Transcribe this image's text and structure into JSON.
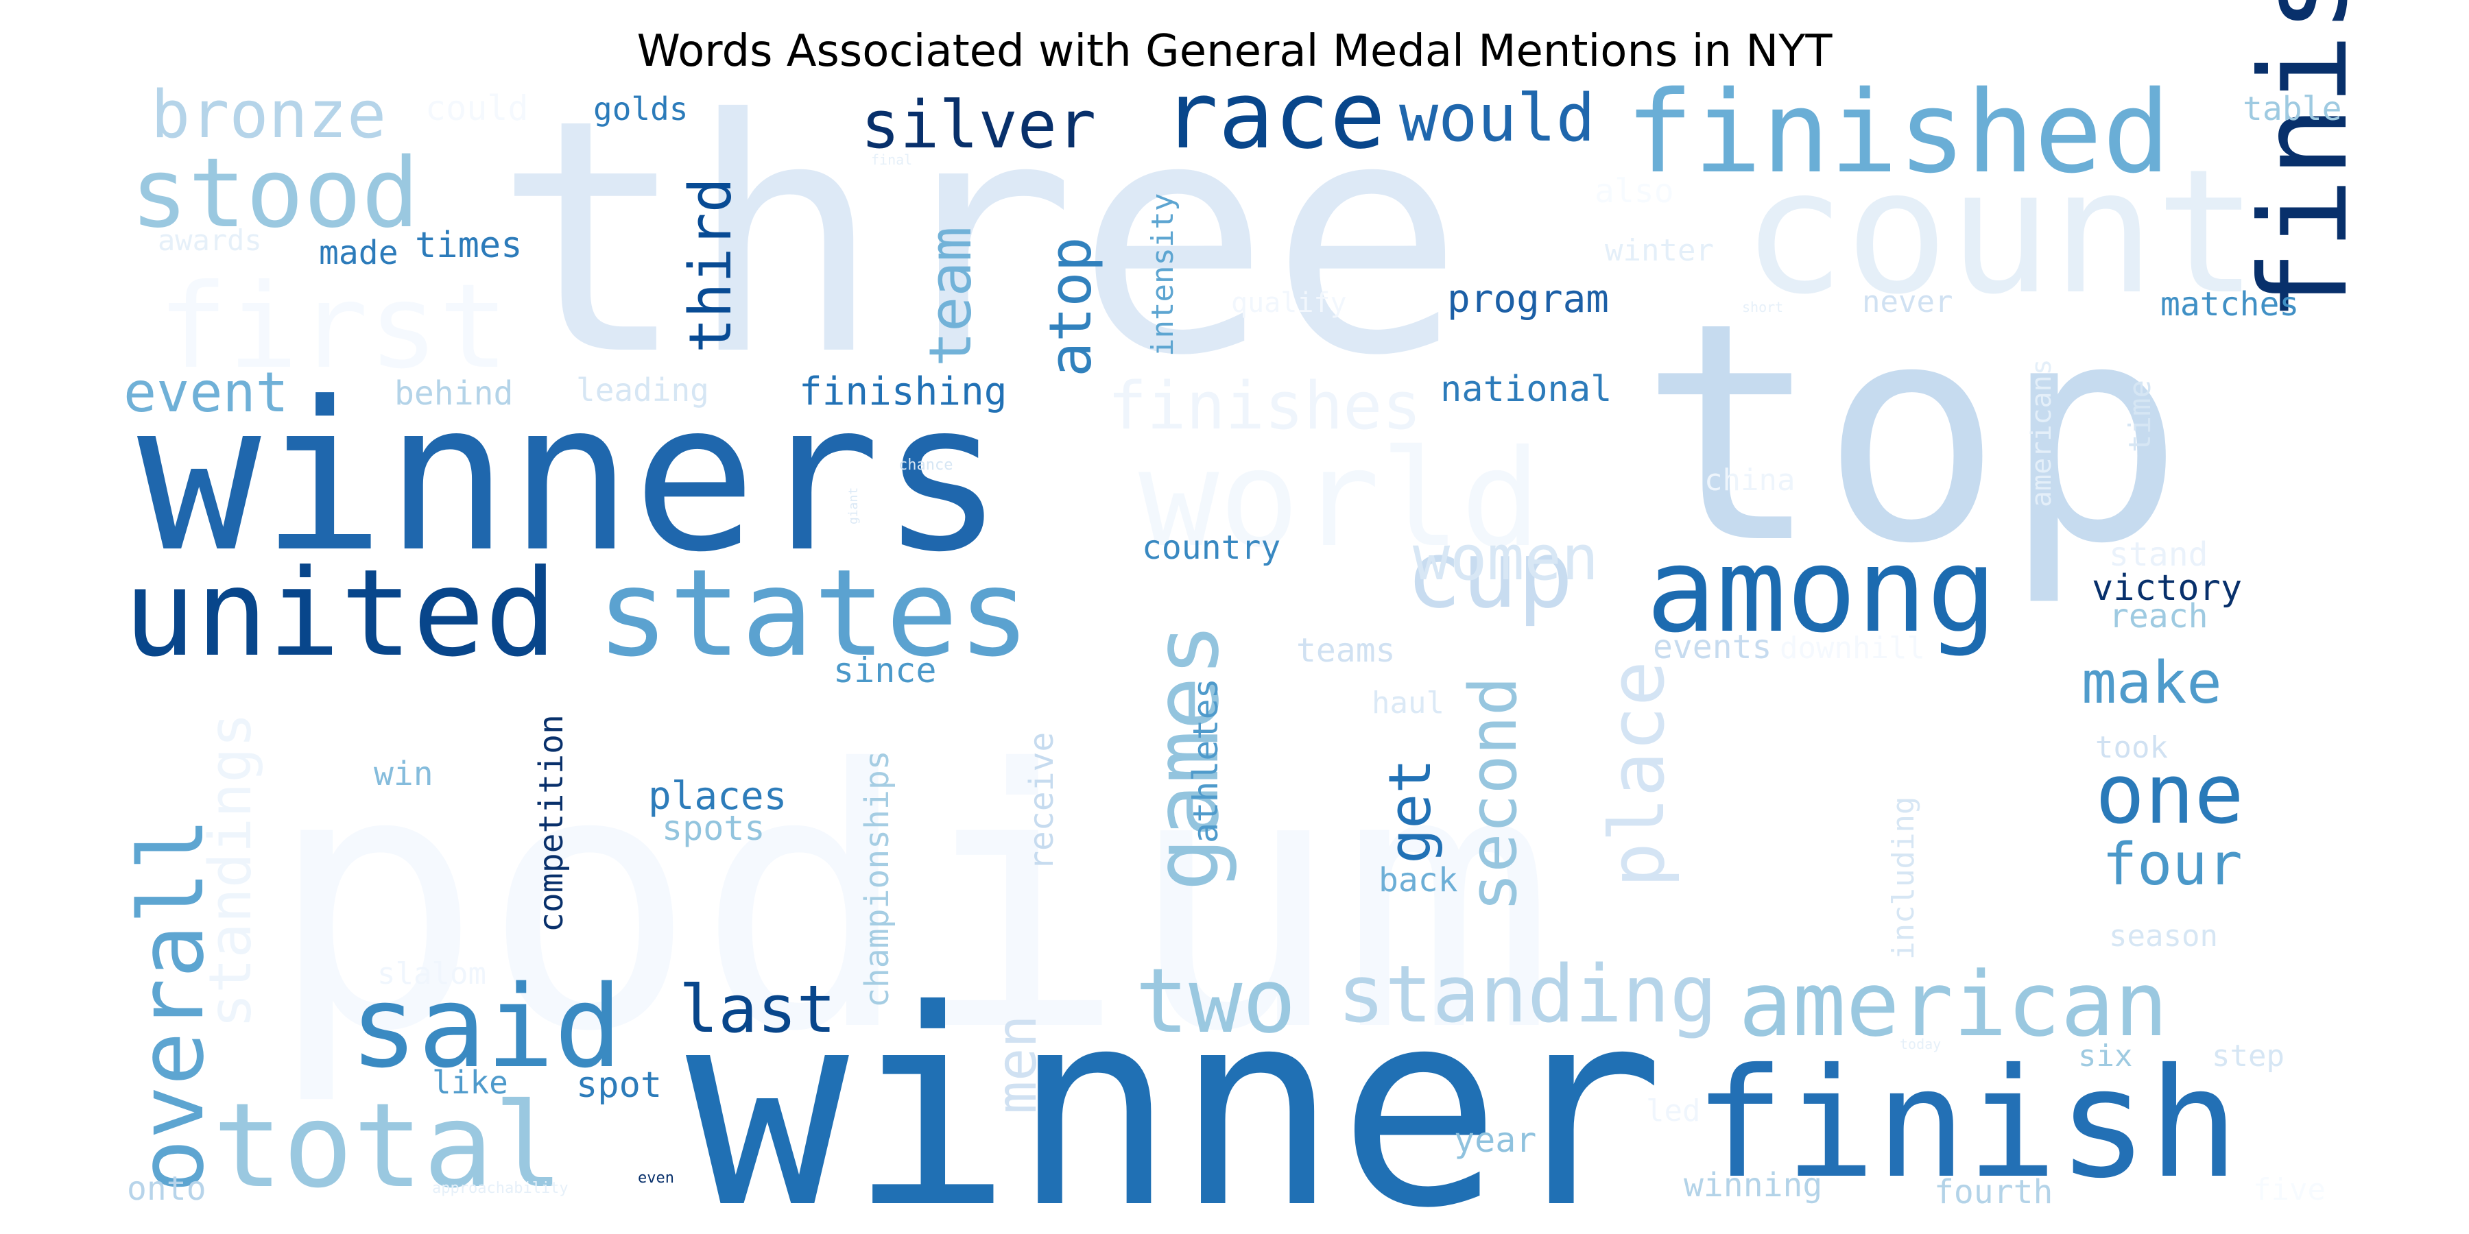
{
  "chart_data": {
    "type": "wordcloud",
    "title": "Words Associated with General Medal Mentions in NYT",
    "colormap": "Blues",
    "words": [
      {
        "text": "podium",
        "weight": 1.0
      },
      {
        "text": "three",
        "weight": 0.99
      },
      {
        "text": "top",
        "weight": 0.98
      },
      {
        "text": "winner",
        "weight": 0.95
      },
      {
        "text": "count",
        "weight": 0.9
      },
      {
        "text": "winners",
        "weight": 0.88
      },
      {
        "text": "first",
        "weight": 0.86
      },
      {
        "text": "world",
        "weight": 0.85
      },
      {
        "text": "finishers",
        "weight": 0.8
      },
      {
        "text": "finish",
        "weight": 0.77
      },
      {
        "text": "united",
        "weight": 0.75
      },
      {
        "text": "states",
        "weight": 0.74
      },
      {
        "text": "among",
        "weight": 0.72
      },
      {
        "text": "finished",
        "weight": 0.7
      },
      {
        "text": "total",
        "weight": 0.69
      },
      {
        "text": "said",
        "weight": 0.68
      },
      {
        "text": "overall",
        "weight": 0.66
      },
      {
        "text": "american",
        "weight": 0.64
      },
      {
        "text": "games",
        "weight": 0.63
      },
      {
        "text": "stood",
        "weight": 0.62
      },
      {
        "text": "two",
        "weight": 0.61
      },
      {
        "text": "race",
        "weight": 0.6
      },
      {
        "text": "cup",
        "weight": 0.6
      },
      {
        "text": "standing",
        "weight": 0.58
      },
      {
        "text": "finishes",
        "weight": 0.57
      },
      {
        "text": "one",
        "weight": 0.56
      },
      {
        "text": "place",
        "weight": 0.55
      },
      {
        "text": "silver",
        "weight": 0.54
      },
      {
        "text": "would",
        "weight": 0.53
      },
      {
        "text": "bronze",
        "weight": 0.53
      },
      {
        "text": "second",
        "weight": 0.52
      },
      {
        "text": "last",
        "weight": 0.51
      },
      {
        "text": "standings",
        "weight": 0.5
      },
      {
        "text": "women",
        "weight": 0.5
      },
      {
        "text": "team",
        "weight": 0.49
      },
      {
        "text": "event",
        "weight": 0.48
      },
      {
        "text": "make",
        "weight": 0.48
      },
      {
        "text": "four",
        "weight": 0.47
      },
      {
        "text": "men",
        "weight": 0.46
      },
      {
        "text": "third",
        "weight": 0.45
      },
      {
        "text": "atop",
        "weight": 0.45
      },
      {
        "text": "get",
        "weight": 0.44
      },
      {
        "text": "competition",
        "weight": 0.38
      },
      {
        "text": "finishing",
        "weight": 0.37
      },
      {
        "text": "program",
        "weight": 0.37
      },
      {
        "text": "places",
        "weight": 0.36
      },
      {
        "text": "victory",
        "weight": 0.35
      },
      {
        "text": "spot",
        "weight": 0.35
      },
      {
        "text": "national",
        "weight": 0.34
      },
      {
        "text": "country",
        "weight": 0.34
      },
      {
        "text": "times",
        "weight": 0.33
      },
      {
        "text": "intensity",
        "weight": 0.33
      },
      {
        "text": "athletes",
        "weight": 0.33
      },
      {
        "text": "championships",
        "weight": 0.33
      },
      {
        "text": "spots",
        "weight": 0.32
      },
      {
        "text": "since",
        "weight": 0.32
      },
      {
        "text": "year",
        "weight": 0.32
      },
      {
        "text": "golds",
        "weight": 0.32
      },
      {
        "text": "made",
        "weight": 0.31
      },
      {
        "text": "table",
        "weight": 0.31
      },
      {
        "text": "matches",
        "weight": 0.31
      },
      {
        "text": "teams",
        "weight": 0.31
      },
      {
        "text": "back",
        "weight": 0.31
      },
      {
        "text": "events",
        "weight": 0.31
      },
      {
        "text": "winning",
        "weight": 0.3
      },
      {
        "text": "fourth",
        "weight": 0.3
      },
      {
        "text": "receive",
        "weight": 0.3
      },
      {
        "text": "reach",
        "weight": 0.3
      },
      {
        "text": "including",
        "weight": 0.3
      },
      {
        "text": "leading",
        "weight": 0.3
      },
      {
        "text": "behind",
        "weight": 0.3
      },
      {
        "text": "win",
        "weight": 0.3
      },
      {
        "text": "like",
        "weight": 0.3
      },
      {
        "text": "onto",
        "weight": 0.3
      },
      {
        "text": "season",
        "weight": 0.29
      },
      {
        "text": "step",
        "weight": 0.29
      },
      {
        "text": "six",
        "weight": 0.29
      },
      {
        "text": "took",
        "weight": 0.29
      },
      {
        "text": "stand",
        "weight": 0.29
      },
      {
        "text": "time",
        "weight": 0.29
      },
      {
        "text": "americans",
        "weight": 0.29
      },
      {
        "text": "china",
        "weight": 0.28
      },
      {
        "text": "never",
        "weight": 0.28
      },
      {
        "text": "winter",
        "weight": 0.28
      },
      {
        "text": "haul",
        "weight": 0.28
      },
      {
        "text": "slalom",
        "weight": 0.28
      },
      {
        "text": "awards",
        "weight": 0.28
      },
      {
        "text": "could",
        "weight": 0.28
      },
      {
        "text": "also",
        "weight": 0.27
      },
      {
        "text": "qualify",
        "weight": 0.27
      },
      {
        "text": "downhill",
        "weight": 0.27
      },
      {
        "text": "led",
        "weight": 0.27
      },
      {
        "text": "five",
        "weight": 0.27
      },
      {
        "text": "short",
        "weight": 0.15
      },
      {
        "text": "final",
        "weight": 0.15
      },
      {
        "text": "giant",
        "weight": 0.15
      },
      {
        "text": "chance",
        "weight": 0.15
      },
      {
        "text": "today",
        "weight": 0.15
      },
      {
        "text": "even",
        "weight": 0.15
      },
      {
        "text": "approachability",
        "weight": 0.15
      }
    ]
  }
}
